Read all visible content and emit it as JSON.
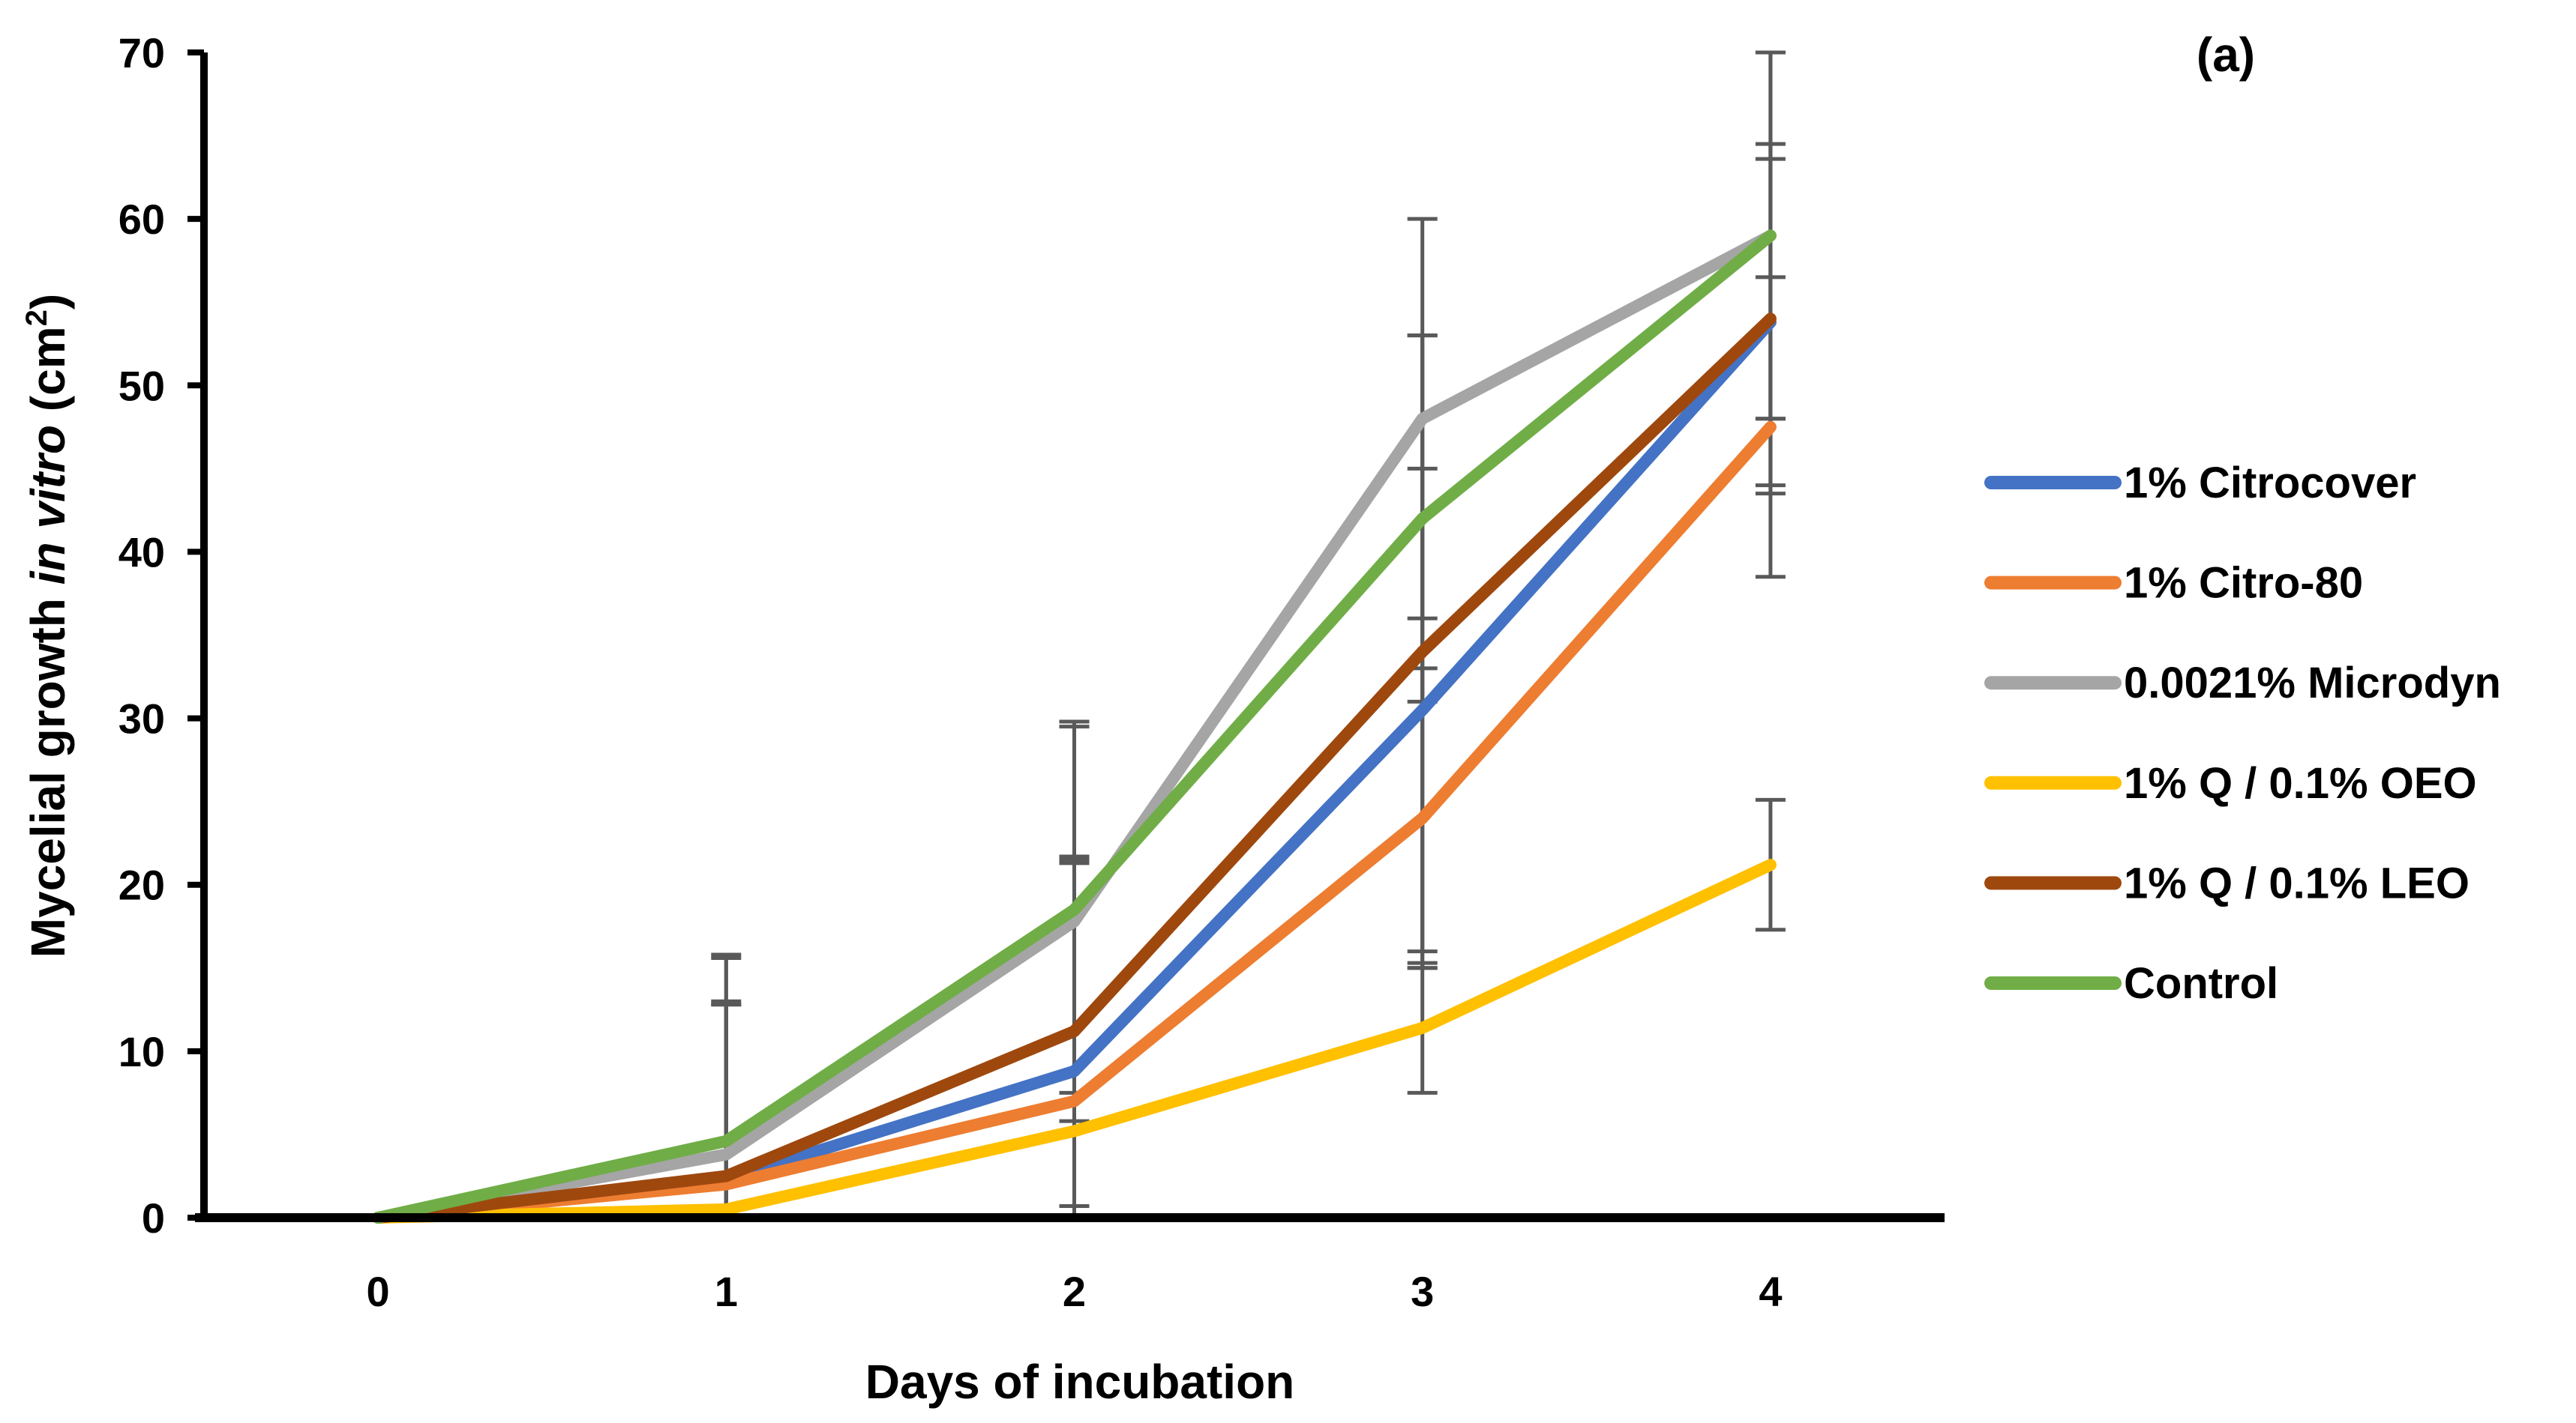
{
  "chart_data": {
    "type": "line",
    "panel_label": "(a)",
    "xlabel": "Days of incubation",
    "ylabel": {
      "prefix": "Mycelial growth ",
      "italic": "in vitro",
      "suffix": " (cm",
      "superscript": "2",
      "close": ")"
    },
    "x": [
      0,
      1,
      2,
      3,
      4
    ],
    "x_tick_labels": [
      "0",
      "1",
      "2",
      "3",
      "4"
    ],
    "ylim": [
      0,
      70
    ],
    "y_ticks": [
      0,
      10,
      20,
      30,
      40,
      50,
      60,
      70
    ],
    "y_tick_labels": [
      "0",
      "10",
      "20",
      "30",
      "40",
      "50",
      "60",
      "70"
    ],
    "grid": false,
    "legend_position": "right",
    "error_bar_color": "#595959",
    "series": [
      {
        "name": "1% Citrocover",
        "color": "#4472C4",
        "values": [
          0,
          2.3,
          8.8,
          30.5,
          53.8
        ],
        "errors": [
          0,
          10.5,
          12.5,
          14.5,
          9.8
        ]
      },
      {
        "name": "1% Citro-80",
        "color": "#ED7D31",
        "values": [
          0,
          2.0,
          7.0,
          24.0,
          47.5
        ],
        "errors": [
          0,
          10.8,
          14.5,
          9.0,
          9.0
        ]
      },
      {
        "name": "0.0021% Microdyn",
        "color": "#A5A5A5",
        "values": [
          0,
          3.8,
          17.8,
          48.0,
          59.0
        ],
        "errors": [
          0,
          12.0,
          12.0,
          12.0,
          11.0
        ]
      },
      {
        "name": "1% Q / 0.1% OEO",
        "color": "#FFC000",
        "values": [
          0,
          0.5,
          5.2,
          11.4,
          21.2
        ],
        "errors": [
          0,
          0,
          0,
          3.9,
          3.9
        ]
      },
      {
        "name": "1% Q / 0.1% LEO",
        "color": "#9E480E",
        "values": [
          0,
          2.5,
          11.2,
          34.0,
          54.0
        ],
        "errors": [
          0,
          10.5,
          10.5,
          19.0,
          10.5
        ]
      },
      {
        "name": "Control",
        "color": "#70AD47",
        "values": [
          0,
          4.6,
          18.5,
          42.0,
          59.0
        ],
        "errors": [
          0,
          11.0,
          11.0,
          11.0,
          11.0
        ]
      }
    ]
  }
}
